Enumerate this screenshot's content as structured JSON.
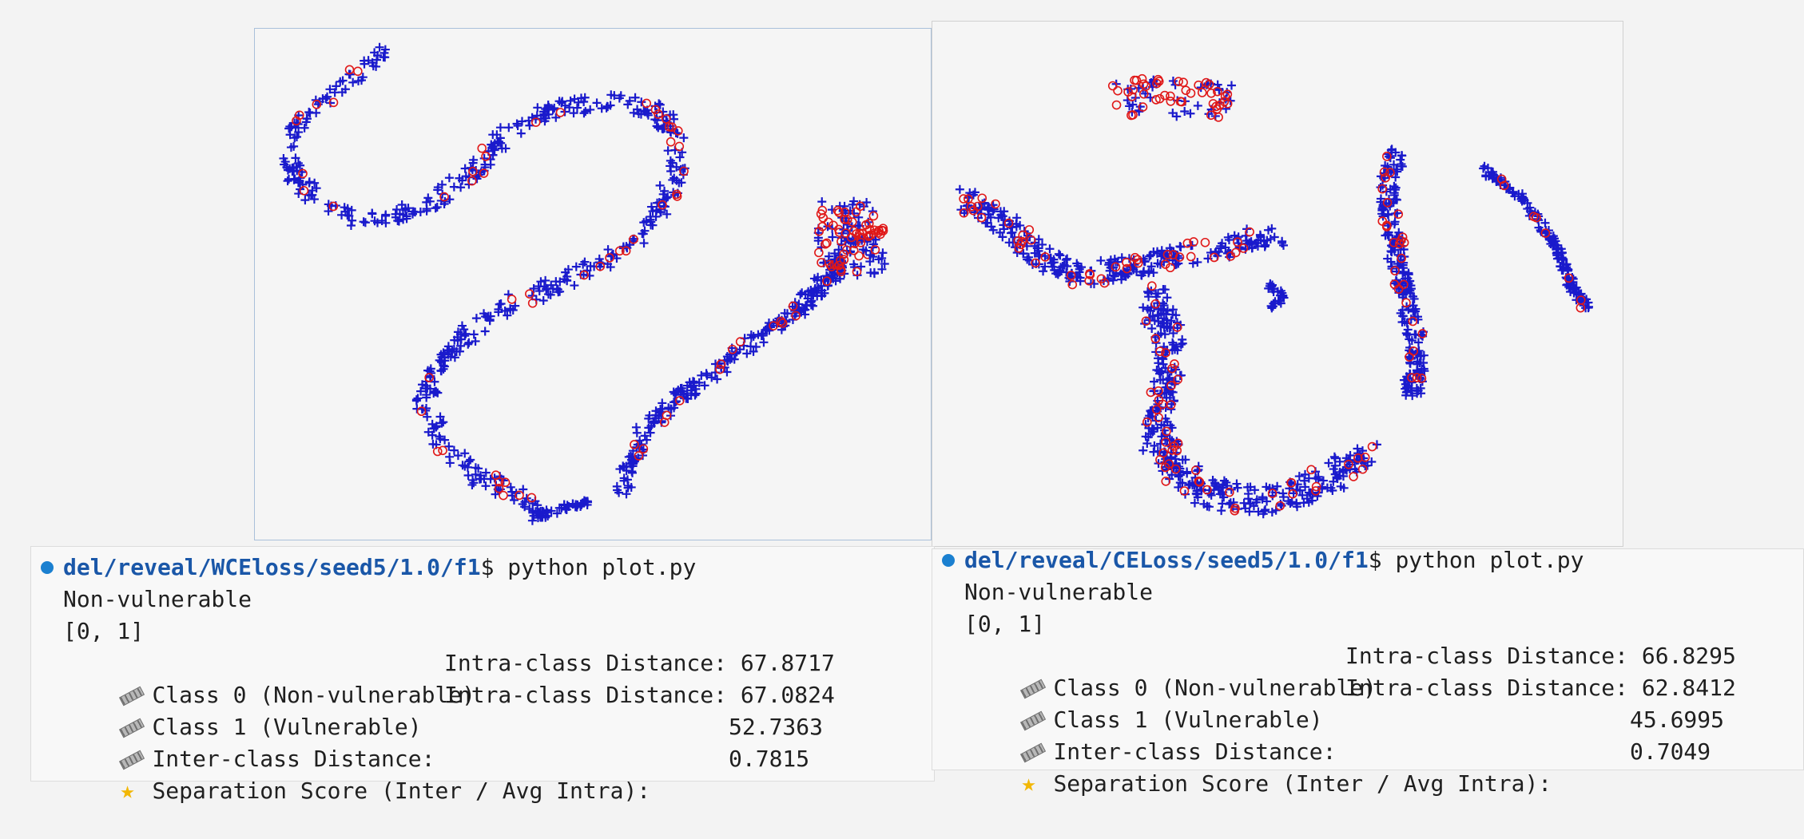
{
  "plots": {
    "left": {
      "name": "WCEloss",
      "markers": {
        "class0": "+",
        "class1": "o"
      },
      "colors": {
        "class0": "#1a1acc",
        "class1": "#e01818"
      },
      "chart_data": {
        "type": "scatter",
        "series": [
          {
            "marker": "+",
            "color": "#1a1acc"
          },
          {
            "marker": "o",
            "color": "#e01818"
          }
        ]
      }
    },
    "right": {
      "name": "CELoss",
      "markers": {
        "class0": "+",
        "class1": "o"
      },
      "colors": {
        "class0": "#1a1acc",
        "class1": "#e01818"
      }
    }
  },
  "terminal_left": {
    "path": "del/reveal/WCEloss/seed5/1.0/f1",
    "prompt": "$ python plot.py",
    "label": "Non-vulnerable",
    "list": "[0, 1]",
    "class0_label": "Class 0 (Non-vulnerable)",
    "class0_metric": "Intra-class Distance: 67.8717",
    "class1_label": "Class 1 (Vulnerable)",
    "class1_metric": "Intra-class Distance: 67.0824",
    "inter_label": "Inter-class Distance:",
    "inter_value": "52.7363",
    "sep_label": "Separation Score (Inter / Avg Intra):",
    "sep_value": "0.7815"
  },
  "terminal_right": {
    "path": "del/reveal/CELoss/seed5/1.0/f1",
    "prompt": "$ python plot.py",
    "label": "Non-vulnerable",
    "list": "[0, 1]",
    "class0_label": "Class 0 (Non-vulnerable)",
    "class0_metric": "Intra-class Distance: 66.8295",
    "class1_label": "Class 1 (Vulnerable)",
    "class1_metric": "Intra-class Distance: 62.8412",
    "inter_label": "Inter-class Distance:",
    "inter_value": "45.6995",
    "sep_label": "Separation Score (Inter / Avg Intra):",
    "sep_value": "0.7049"
  },
  "icons": {
    "ruler": "ruler-icon",
    "star": "star-icon",
    "status_dot": "status-dot-icon"
  }
}
